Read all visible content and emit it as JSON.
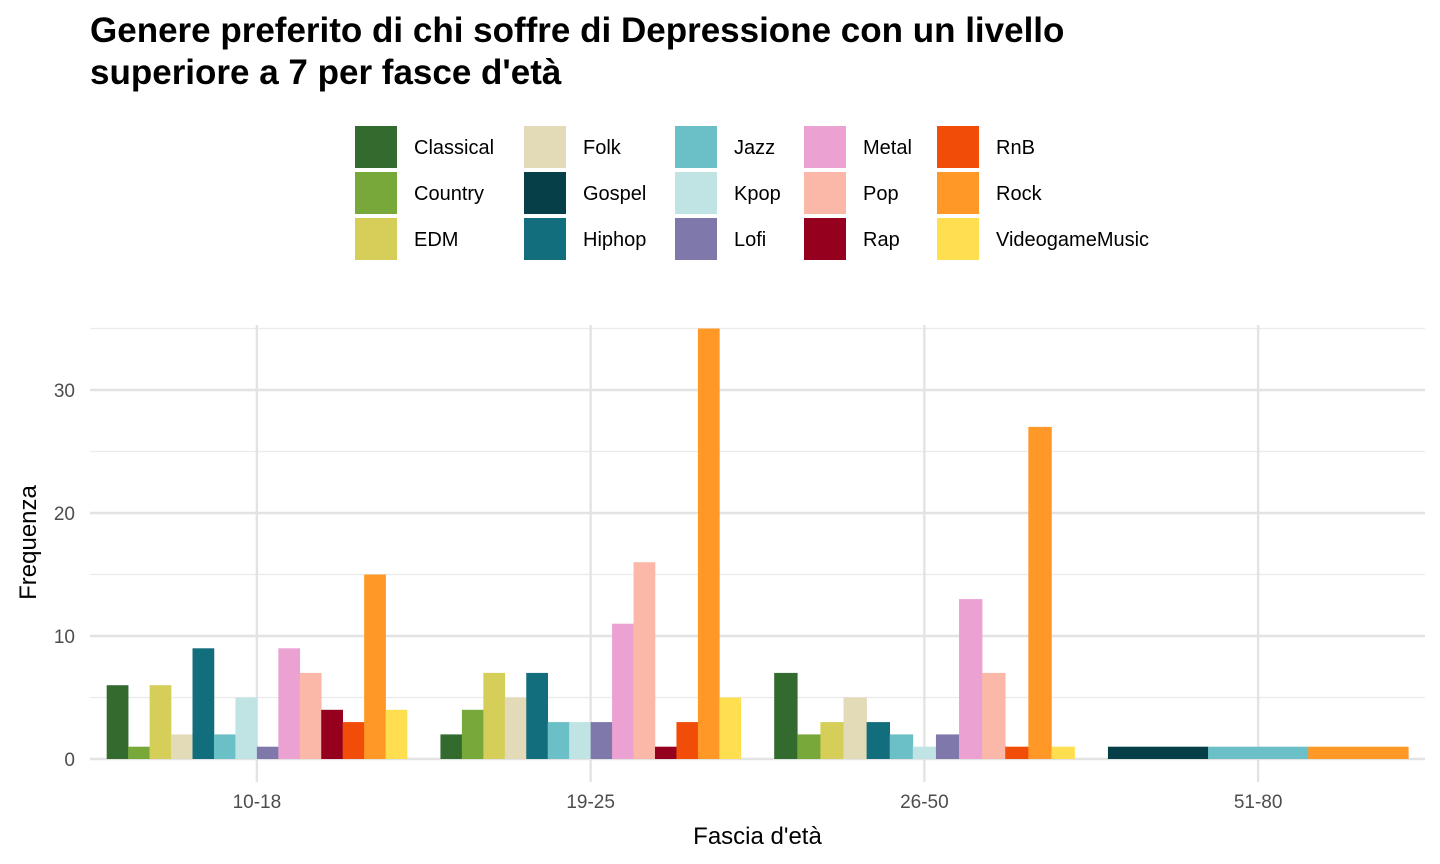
{
  "chart_data": {
    "type": "bar",
    "title_lines": [
      "Genere preferito di chi soffre di Depressione con un livello",
      "superiore a 7 per fasce d'età"
    ],
    "xlabel": "Fascia d'età",
    "ylabel": "Frequenza",
    "categories": [
      "10-18",
      "19-25",
      "26-50",
      "51-80"
    ],
    "y_ticks": [
      0,
      10,
      20,
      30
    ],
    "ylim": [
      0,
      35
    ],
    "grid": true,
    "legend_position": "top",
    "series": [
      {
        "name": "Classical",
        "color": "#336B2F",
        "values": [
          6,
          2,
          7,
          null
        ]
      },
      {
        "name": "Country",
        "color": "#78A83A",
        "values": [
          1,
          4,
          2,
          null
        ]
      },
      {
        "name": "EDM",
        "color": "#D5CE58",
        "values": [
          6,
          7,
          3,
          null
        ]
      },
      {
        "name": "Folk",
        "color": "#E3DAB8",
        "values": [
          2,
          5,
          5,
          null
        ]
      },
      {
        "name": "Gospel",
        "color": "#073F48",
        "values": [
          null,
          null,
          null,
          1
        ]
      },
      {
        "name": "Hiphop",
        "color": "#126D7C",
        "values": [
          9,
          7,
          3,
          null
        ]
      },
      {
        "name": "Jazz",
        "color": "#6BBFC6",
        "values": [
          2,
          3,
          2,
          1
        ]
      },
      {
        "name": "Kpop",
        "color": "#C0E4E4",
        "values": [
          5,
          3,
          1,
          null
        ]
      },
      {
        "name": "Lofi",
        "color": "#7F78AB",
        "values": [
          1,
          3,
          2,
          null
        ]
      },
      {
        "name": "Metal",
        "color": "#EBA1D2",
        "values": [
          9,
          11,
          13,
          null
        ]
      },
      {
        "name": "Pop",
        "color": "#FBB8A8",
        "values": [
          7,
          16,
          7,
          null
        ]
      },
      {
        "name": "Rap",
        "color": "#94001E",
        "values": [
          4,
          1,
          null,
          null
        ]
      },
      {
        "name": "RnB",
        "color": "#F14D09",
        "values": [
          3,
          3,
          1,
          null
        ]
      },
      {
        "name": "Rock",
        "color": "#FF9826",
        "values": [
          15,
          35,
          27,
          1
        ]
      },
      {
        "name": "VideogameMusic",
        "color": "#FFDE4F",
        "values": [
          4,
          5,
          1,
          null
        ]
      }
    ]
  }
}
